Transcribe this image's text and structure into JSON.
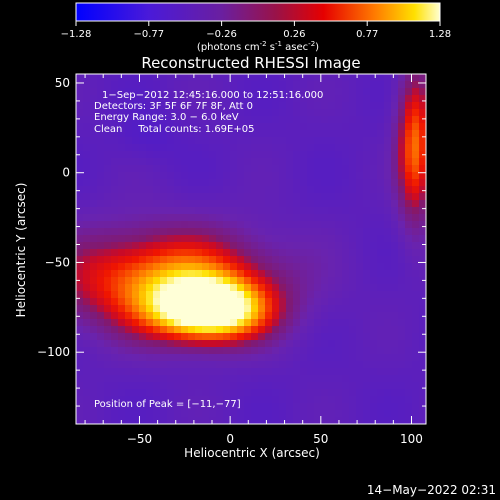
{
  "colorbar": {
    "ticks": [
      "-1.28",
      "-0.77",
      "-0.26",
      "0.26",
      "0.77",
      "1.28"
    ],
    "unit_label": {
      "open": "(photons cm",
      "exp1": "-2",
      "mid1": " s",
      "exp2": "-1",
      "mid2": " asec",
      "exp3": "-2",
      "close": ")"
    }
  },
  "plot": {
    "title": "Reconstructed RHESSI Image",
    "xlabel": "Heliocentric X (arcsec)",
    "ylabel": "Heliocentric Y (arcsec)",
    "x_ticks": [
      "−50",
      "0",
      "50",
      "100"
    ],
    "y_ticks": [
      "50",
      "0",
      "−50",
      "−100"
    ],
    "annotations": [
      "1−Sep−2012 12:45:16.000 to 12:51:16.000",
      "Detectors: 3F 5F 6F 7F 8F, Att 0",
      "Energy Range: 3.0 − 6.0 keV",
      "Clean     Total counts: 1.69E+05"
    ],
    "peak_label": "Position of Peak = [−11,−77]"
  },
  "footer": {
    "timestamp": "14−May−2022 02:31"
  },
  "colors": {
    "background": "#000000",
    "text": "#ffffff"
  },
  "chart_data": {
    "type": "heatmap",
    "title": "Reconstructed RHESSI Image",
    "xlabel": "Heliocentric X (arcsec)",
    "ylabel": "Heliocentric Y (arcsec)",
    "xlim": [
      -85,
      108
    ],
    "ylim": [
      -140,
      55
    ],
    "colorbar_range": [
      -1.28,
      1.28
    ],
    "peak_position": [
      -11,
      -77
    ],
    "sources": [
      {
        "x": -11,
        "y": -77,
        "sx": 22,
        "sy": 12,
        "amp": 1.28
      },
      {
        "x": -35,
        "y": -60,
        "sx": 42,
        "sy": 20,
        "amp": 0.8
      },
      {
        "x": 102,
        "y": 15,
        "sx": 7,
        "sy": 30,
        "amp": 0.7
      }
    ]
  }
}
